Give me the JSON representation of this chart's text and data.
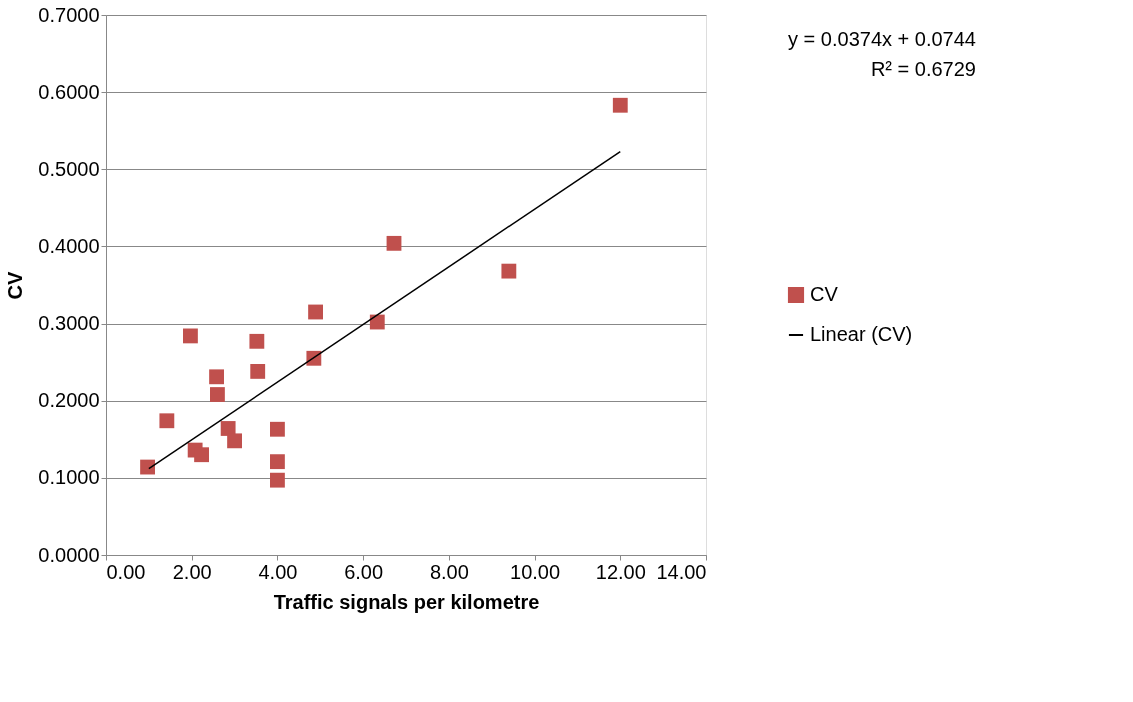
{
  "chart_data": {
    "type": "scatter",
    "xlabel": "Traffic signals per kilometre",
    "ylabel": "CV",
    "xlim": [
      0,
      14
    ],
    "xticks": [
      {
        "value": 0,
        "label": "0.00"
      },
      {
        "value": 2,
        "label": "2.00"
      },
      {
        "value": 4,
        "label": "4.00"
      },
      {
        "value": 6,
        "label": "6.00"
      },
      {
        "value": 8,
        "label": "8.00"
      },
      {
        "value": 10,
        "label": "10.00"
      },
      {
        "value": 12,
        "label": "12.00"
      },
      {
        "value": 14,
        "label": "14.00"
      }
    ],
    "ylim": [
      0,
      0.7
    ],
    "yticks": [
      {
        "value": 0,
        "label": "0.0000"
      },
      {
        "value": 0.1,
        "label": "0.1000"
      },
      {
        "value": 0.2,
        "label": "0.2000"
      },
      {
        "value": 0.3,
        "label": "0.3000"
      },
      {
        "value": 0.4,
        "label": "0.4000"
      },
      {
        "value": 0.5,
        "label": "0.5000"
      },
      {
        "value": 0.6,
        "label": "0.6000"
      },
      {
        "value": 0.7,
        "label": "0.7000"
      }
    ],
    "grid": "y",
    "legend": "right",
    "annotations": [
      "y = 0.0374x + 0.0744",
      "R² = 0.6729"
    ],
    "series": [
      {
        "name": "CV",
        "marker": "square",
        "color": "#c0504d",
        "x": [
          0.97,
          1.42,
          1.97,
          2.08,
          2.23,
          2.58,
          2.6,
          2.85,
          3.0,
          3.52,
          3.54,
          4.0,
          4.0,
          4.0,
          4.85,
          4.89,
          6.33,
          6.72,
          9.4,
          12.0
        ],
        "values": [
          0.114,
          0.174,
          0.284,
          0.136,
          0.13,
          0.231,
          0.208,
          0.164,
          0.148,
          0.277,
          0.238,
          0.163,
          0.121,
          0.097,
          0.255,
          0.315,
          0.302,
          0.404,
          0.368,
          0.583
        ]
      },
      {
        "name": "Linear (CV)",
        "type": "line",
        "marker": "none",
        "color": "#000000",
        "x": [
          1,
          12
        ],
        "values": [
          0.112,
          0.523
        ]
      }
    ]
  }
}
